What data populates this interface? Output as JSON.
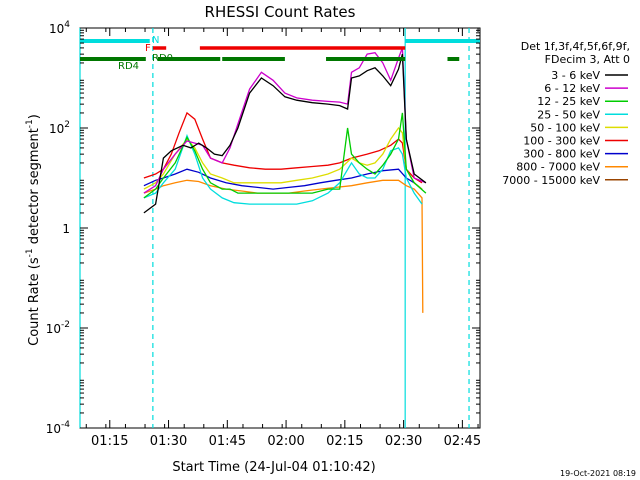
{
  "chart_data": {
    "type": "line",
    "title": "RHESSI Count Rates",
    "xlabel": "Start Time (24-Jul-04 01:10:42)",
    "ylabel": "Count Rate (s⁻¹ detector segment⁻¹)",
    "ylabel_parts": {
      "main": "Count Rate (s",
      "sup1": "-1",
      "mid": " detector segment",
      "sup2": "-1",
      "end": ")"
    },
    "y_scale": "log",
    "ylim": [
      0.0001,
      10000
    ],
    "y_ticks": [
      {
        "value": 0.0001,
        "base": "10",
        "exp": "-4"
      },
      {
        "value": 0.01,
        "base": "10",
        "exp": "-2"
      },
      {
        "value": 1,
        "base": "1",
        "exp": "0"
      },
      {
        "value": 100,
        "base": "10",
        "exp": "2"
      },
      {
        "value": 10000,
        "base": "10",
        "exp": "4"
      }
    ],
    "x_unit": "minutes since 01:10:42",
    "xlim": [
      -3.3,
      98.8
    ],
    "x_ticks": [
      {
        "label": "01:15",
        "value": 4.3
      },
      {
        "label": "01:30",
        "value": 19.3
      },
      {
        "label": "01:45",
        "value": 34.3
      },
      {
        "label": "02:00",
        "value": 49.3
      },
      {
        "label": "02:15",
        "value": 64.3
      },
      {
        "label": "02:30",
        "value": 79.3
      },
      {
        "label": "02:45",
        "value": 94.3
      }
    ],
    "legend_header": [
      "Det 1f,3f,4f,5f,6f,9f,",
      "FDecim 3, Att 0"
    ],
    "legend_position": "right",
    "series": [
      {
        "name": "3 - 6 keV",
        "color": "#000000",
        "values": [
          [
            13,
            2
          ],
          [
            16,
            3
          ],
          [
            18,
            25
          ],
          [
            20,
            35
          ],
          [
            23,
            45
          ],
          [
            25,
            40
          ],
          [
            27,
            50
          ],
          [
            29,
            40
          ],
          [
            31,
            30
          ],
          [
            33,
            28
          ],
          [
            35,
            45
          ],
          [
            37,
            100
          ],
          [
            40,
            500
          ],
          [
            43,
            1000
          ],
          [
            46,
            700
          ],
          [
            49,
            420
          ],
          [
            52,
            360
          ],
          [
            56,
            320
          ],
          [
            60,
            300
          ],
          [
            63,
            280
          ],
          [
            65,
            240
          ],
          [
            66,
            1000
          ],
          [
            68,
            1100
          ],
          [
            70,
            1400
          ],
          [
            72,
            1600
          ],
          [
            74,
            1100
          ],
          [
            76,
            700
          ],
          [
            78,
            1500
          ],
          [
            79,
            3000
          ],
          [
            80,
            60
          ],
          [
            82,
            12
          ],
          [
            85,
            8
          ]
        ]
      },
      {
        "name": "6 - 12 keV",
        "color": "#cc00cc",
        "values": [
          [
            13,
            5
          ],
          [
            16,
            7
          ],
          [
            18,
            15
          ],
          [
            21,
            30
          ],
          [
            24,
            55
          ],
          [
            26,
            50
          ],
          [
            28,
            45
          ],
          [
            30,
            25
          ],
          [
            33,
            20
          ],
          [
            35,
            40
          ],
          [
            37,
            120
          ],
          [
            40,
            600
          ],
          [
            43,
            1300
          ],
          [
            46,
            900
          ],
          [
            49,
            500
          ],
          [
            52,
            400
          ],
          [
            56,
            360
          ],
          [
            60,
            340
          ],
          [
            63,
            330
          ],
          [
            65,
            300
          ],
          [
            66,
            1300
          ],
          [
            68,
            1600
          ],
          [
            70,
            3000
          ],
          [
            72,
            3200
          ],
          [
            74,
            2000
          ],
          [
            76,
            900
          ],
          [
            78,
            2500
          ],
          [
            79,
            4000
          ],
          [
            80,
            60
          ],
          [
            82,
            10
          ],
          [
            85,
            8
          ]
        ]
      },
      {
        "name": "12 - 25 keV",
        "color": "#00cc00",
        "values": [
          [
            13,
            4
          ],
          [
            16,
            6
          ],
          [
            18,
            10
          ],
          [
            21,
            20
          ],
          [
            24,
            65
          ],
          [
            26,
            35
          ],
          [
            28,
            15
          ],
          [
            30,
            8
          ],
          [
            33,
            6
          ],
          [
            35,
            6
          ],
          [
            37,
            5
          ],
          [
            40,
            5
          ],
          [
            43,
            5
          ],
          [
            46,
            5
          ],
          [
            49,
            5
          ],
          [
            52,
            5
          ],
          [
            56,
            5
          ],
          [
            60,
            6
          ],
          [
            63,
            6
          ],
          [
            64,
            25
          ],
          [
            65,
            100
          ],
          [
            66,
            30
          ],
          [
            68,
            20
          ],
          [
            70,
            15
          ],
          [
            72,
            12
          ],
          [
            74,
            18
          ],
          [
            76,
            30
          ],
          [
            78,
            60
          ],
          [
            79,
            200
          ],
          [
            80,
            15
          ],
          [
            82,
            8
          ],
          [
            85,
            5
          ]
        ]
      },
      {
        "name": "25 - 50 keV",
        "color": "#00dddd",
        "values": [
          [
            13,
            4
          ],
          [
            16,
            5
          ],
          [
            18,
            8
          ],
          [
            21,
            15
          ],
          [
            24,
            70
          ],
          [
            26,
            30
          ],
          [
            28,
            10
          ],
          [
            30,
            6
          ],
          [
            33,
            4
          ],
          [
            36,
            3.2
          ],
          [
            40,
            3
          ],
          [
            44,
            3
          ],
          [
            48,
            3
          ],
          [
            52,
            3
          ],
          [
            56,
            3.5
          ],
          [
            60,
            5
          ],
          [
            63,
            8
          ],
          [
            66,
            20
          ],
          [
            68,
            12
          ],
          [
            70,
            10
          ],
          [
            72,
            10
          ],
          [
            74,
            15
          ],
          [
            76,
            35
          ],
          [
            78,
            40
          ],
          [
            79,
            30
          ],
          [
            80,
            10
          ],
          [
            82,
            5
          ],
          [
            84,
            3
          ]
        ]
      },
      {
        "name": "50 - 100 keV",
        "color": "#dddd00",
        "values": [
          [
            13,
            6
          ],
          [
            16,
            8
          ],
          [
            18,
            12
          ],
          [
            21,
            30
          ],
          [
            24,
            60
          ],
          [
            26,
            40
          ],
          [
            28,
            20
          ],
          [
            30,
            12
          ],
          [
            33,
            10
          ],
          [
            36,
            8
          ],
          [
            40,
            8
          ],
          [
            44,
            8
          ],
          [
            48,
            8
          ],
          [
            52,
            9
          ],
          [
            56,
            10
          ],
          [
            60,
            12
          ],
          [
            63,
            15
          ],
          [
            66,
            25
          ],
          [
            68,
            20
          ],
          [
            70,
            18
          ],
          [
            72,
            20
          ],
          [
            74,
            30
          ],
          [
            76,
            60
          ],
          [
            78,
            100
          ],
          [
            79,
            80
          ],
          [
            80,
            15
          ],
          [
            82,
            8
          ],
          [
            84,
            6
          ]
        ]
      },
      {
        "name": "100 - 300 keV",
        "color": "#ee0000",
        "values": [
          [
            13,
            10
          ],
          [
            16,
            12
          ],
          [
            18,
            15
          ],
          [
            20,
            30
          ],
          [
            22,
            80
          ],
          [
            24,
            200
          ],
          [
            26,
            150
          ],
          [
            28,
            60
          ],
          [
            30,
            25
          ],
          [
            33,
            20
          ],
          [
            36,
            18
          ],
          [
            40,
            16
          ],
          [
            44,
            15
          ],
          [
            48,
            15
          ],
          [
            52,
            16
          ],
          [
            56,
            17
          ],
          [
            60,
            18
          ],
          [
            63,
            20
          ],
          [
            66,
            25
          ],
          [
            70,
            30
          ],
          [
            73,
            35
          ],
          [
            76,
            45
          ],
          [
            78,
            60
          ],
          [
            79,
            50
          ],
          [
            80,
            15
          ],
          [
            82,
            10
          ],
          [
            84,
            8
          ]
        ]
      },
      {
        "name": "300 - 800 keV",
        "color": "#0000cc",
        "values": [
          [
            13,
            7
          ],
          [
            16,
            9
          ],
          [
            18,
            10
          ],
          [
            21,
            12
          ],
          [
            24,
            15
          ],
          [
            27,
            13
          ],
          [
            30,
            10
          ],
          [
            34,
            8
          ],
          [
            38,
            7
          ],
          [
            42,
            6.5
          ],
          [
            46,
            6
          ],
          [
            50,
            6.5
          ],
          [
            54,
            7
          ],
          [
            58,
            8
          ],
          [
            62,
            9
          ],
          [
            66,
            10
          ],
          [
            70,
            12
          ],
          [
            74,
            14
          ],
          [
            78,
            15
          ],
          [
            80,
            10
          ],
          [
            82,
            8
          ],
          [
            84,
            6
          ]
        ]
      },
      {
        "name": "800 - 7000 keV",
        "color": "#ff8800",
        "values": [
          [
            13,
            5
          ],
          [
            16,
            6
          ],
          [
            18,
            7
          ],
          [
            21,
            8
          ],
          [
            24,
            9
          ],
          [
            27,
            8.5
          ],
          [
            30,
            7
          ],
          [
            34,
            6
          ],
          [
            38,
            5.5
          ],
          [
            42,
            5
          ],
          [
            46,
            5
          ],
          [
            50,
            5
          ],
          [
            54,
            5.5
          ],
          [
            58,
            6
          ],
          [
            62,
            6.5
          ],
          [
            66,
            7
          ],
          [
            70,
            8
          ],
          [
            74,
            9
          ],
          [
            78,
            9
          ],
          [
            80,
            7
          ],
          [
            82,
            6
          ],
          [
            84,
            4
          ],
          [
            84.2,
            0.02
          ]
        ]
      },
      {
        "name": "7000 - 15000 keV",
        "color": "#994400",
        "values": []
      }
    ],
    "attenuator_state_markers": [
      "RD4",
      "RD0",
      "F",
      "N"
    ],
    "bars": [
      {
        "name": "RD4",
        "color": "#007700",
        "segments": [
          [
            -3.3,
            13.5
          ],
          [
            16.5,
            32.5
          ],
          [
            33,
            49
          ],
          [
            59.5,
            79.7
          ],
          [
            90.5,
            93.5
          ]
        ]
      },
      {
        "name": "RD0",
        "color": "#ee0000",
        "segments": [
          [
            15.3,
            18.7
          ],
          [
            27.3,
            79.7
          ]
        ]
      },
      {
        "name": "N",
        "color": "#00dddd",
        "segments": [
          [
            -3.3,
            14.5
          ],
          [
            79.7,
            98.8
          ]
        ]
      }
    ],
    "vlines": [
      {
        "color": "#00dddd",
        "x": -3.3,
        "style": "solid"
      },
      {
        "color": "#00dddd",
        "x": 15.3,
        "style": "dashed"
      },
      {
        "color": "#00dddd",
        "x": 79.7,
        "style": "solid"
      },
      {
        "color": "#00dddd",
        "x": 96.0,
        "style": "dashed"
      }
    ]
  },
  "footer_timestamp": "19-Oct-2021 08:19"
}
